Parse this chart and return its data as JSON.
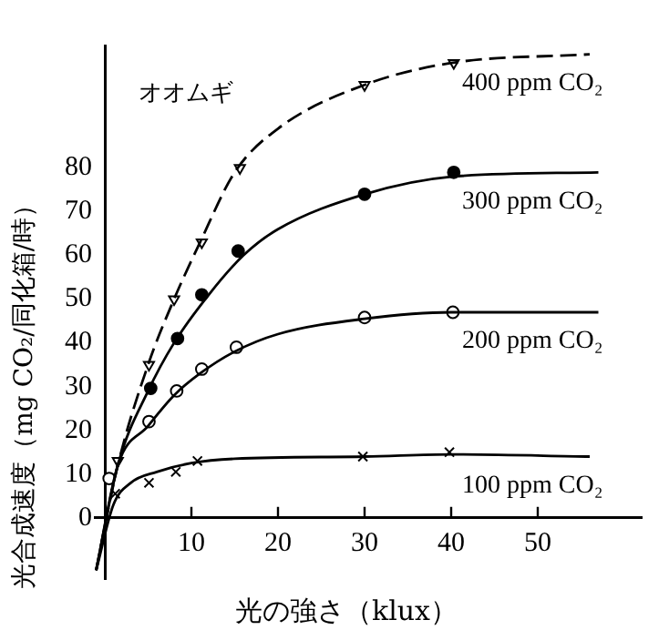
{
  "chart_data": {
    "type": "line",
    "title": "オオムギ",
    "xlabel": "光の強さ（klux）",
    "ylabel": "光合成速度（mg CO₂/同化箱/時）",
    "xlim": [
      -2,
      62
    ],
    "ylim": [
      -14,
      108
    ],
    "xticks": [
      10,
      20,
      30,
      40,
      50
    ],
    "yticks": [
      0,
      10,
      20,
      30,
      40,
      50,
      60,
      70,
      80
    ],
    "grid": false,
    "legend": false,
    "series": [
      {
        "name": "400 ppm CO₂",
        "color": "#000000",
        "line_style": "dashed",
        "marker": "none",
        "x": [
          -1,
          1.5,
          5,
          8,
          11,
          15,
          20,
          30,
          40,
          56
        ],
        "values": [
          -12,
          12,
          35,
          50,
          63,
          79,
          89,
          99,
          104,
          106
        ]
      },
      {
        "name": "300 ppm CO₂",
        "color": "#000000",
        "line_style": "solid",
        "marker": "none",
        "x": [
          -1,
          1.5,
          5,
          8,
          12,
          16,
          20,
          30,
          40,
          57
        ],
        "values": [
          -12,
          12,
          29,
          40,
          51,
          60,
          66,
          74,
          78,
          79
        ]
      },
      {
        "name": "200 ppm CO₂",
        "color": "#000000",
        "line_style": "solid",
        "marker": "none",
        "x": [
          -1,
          1.5,
          5,
          8,
          11,
          15,
          20,
          30,
          40,
          57
        ],
        "values": [
          -12,
          12,
          21,
          28,
          33,
          38,
          42,
          45.5,
          47,
          47
        ]
      },
      {
        "name": "100 ppm CO₂",
        "color": "#000000",
        "line_style": "solid",
        "marker": "none",
        "x": [
          -1,
          1,
          3,
          6,
          10,
          15,
          30,
          40,
          56
        ],
        "values": [
          -12,
          3,
          8,
          10.5,
          12.5,
          13.5,
          14,
          14.5,
          14
        ]
      },
      {
        "type": "scatter",
        "color": "#ffffff",
        "marker": "triangle",
        "x": [
          1.5,
          5.1,
          8,
          11.2,
          15.6,
          30,
          40.3
        ],
        "values": [
          13,
          35,
          50,
          63,
          80,
          99,
          104
        ]
      },
      {
        "type": "scatter",
        "color": "#000000",
        "marker": "circle",
        "x": [
          5.3,
          8.4,
          11.2,
          15.4,
          30,
          40.3
        ],
        "values": [
          29.6,
          41,
          51,
          61,
          74,
          79
        ]
      },
      {
        "type": "scatter",
        "color": "#ffffff",
        "marker": "circle",
        "x": [
          0.5,
          5.1,
          8.3,
          11.2,
          15.2,
          30,
          40.2
        ],
        "values": [
          9,
          22,
          29,
          34,
          39,
          45.8,
          47
        ]
      },
      {
        "type": "scatter",
        "color": "#000000",
        "marker": "cross",
        "x": [
          1.2,
          5.1,
          8.2,
          10.7,
          29.8,
          39.8
        ],
        "values": [
          5.5,
          8,
          10.5,
          13,
          14,
          15
        ]
      }
    ]
  }
}
